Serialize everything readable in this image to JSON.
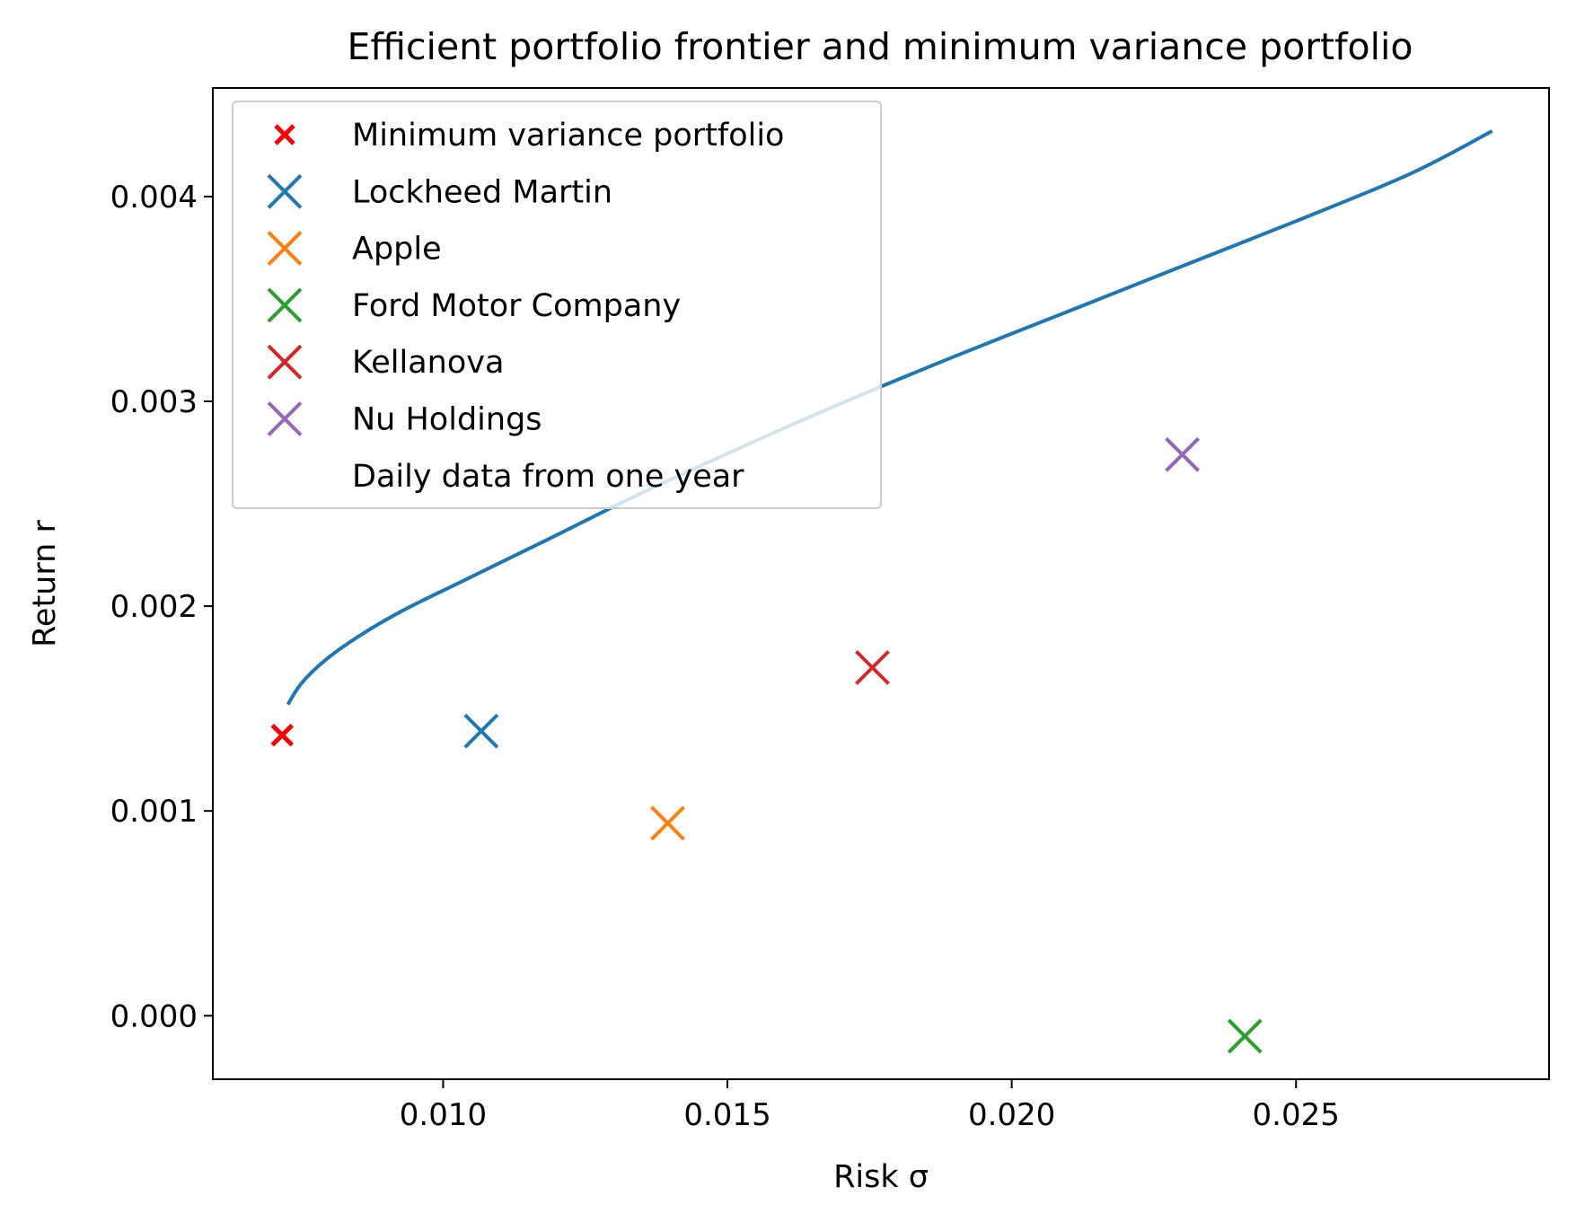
{
  "chart_data": {
    "type": "scatter",
    "title": "Efficient portfolio frontier and minimum variance portfolio",
    "xlabel": "Risk σ",
    "ylabel": "Return r",
    "xlim": [
      0.00595,
      0.02945
    ],
    "ylim": [
      -0.00031,
      0.00453
    ],
    "grid": false,
    "legend_position": "top-left",
    "x_ticks": [
      {
        "value": 0.01,
        "label": "0.010"
      },
      {
        "value": 0.015,
        "label": "0.015"
      },
      {
        "value": 0.02,
        "label": "0.020"
      },
      {
        "value": 0.025,
        "label": "0.025"
      }
    ],
    "y_ticks": [
      {
        "value": 0.0,
        "label": "0.000"
      },
      {
        "value": 0.001,
        "label": "0.001"
      },
      {
        "value": 0.002,
        "label": "0.002"
      },
      {
        "value": 0.003,
        "label": "0.003"
      },
      {
        "value": 0.004,
        "label": "0.004"
      }
    ],
    "frontier": {
      "color": "#1f77b4",
      "points": [
        [
          0.00727,
          0.00152
        ],
        [
          0.0075,
          0.00162
        ],
        [
          0.0079,
          0.00173
        ],
        [
          0.0085,
          0.00185
        ],
        [
          0.0093,
          0.00198
        ],
        [
          0.0104,
          0.00213
        ],
        [
          0.0118,
          0.00232
        ],
        [
          0.0134,
          0.00254
        ],
        [
          0.0152,
          0.00277
        ],
        [
          0.017,
          0.00299
        ],
        [
          0.019,
          0.00322
        ],
        [
          0.021,
          0.00344
        ],
        [
          0.023,
          0.00366
        ],
        [
          0.025,
          0.00388
        ],
        [
          0.027,
          0.00411
        ],
        [
          0.02845,
          0.00432
        ]
      ]
    },
    "series": [
      {
        "name": "Minimum variance portfolio",
        "x": 0.00717,
        "y": 0.00137,
        "color": "#ff0000",
        "marker": "small-x"
      },
      {
        "name": "Lockheed Martin",
        "x": 0.01067,
        "y": 0.00139,
        "color": "#1f77b4",
        "marker": "x"
      },
      {
        "name": "Apple",
        "x": 0.01395,
        "y": 0.00094,
        "color": "#ff7f0e",
        "marker": "x"
      },
      {
        "name": "Ford Motor Company",
        "x": 0.0241,
        "y": -0.0001,
        "color": "#2ca02c",
        "marker": "x"
      },
      {
        "name": "Kellanova",
        "x": 0.01755,
        "y": 0.0017,
        "color": "#d62728",
        "marker": "x"
      },
      {
        "name": "Nu Holdings",
        "x": 0.023,
        "y": 0.00274,
        "color": "#9467bd",
        "marker": "x"
      }
    ],
    "legend_note": "Daily data from one year"
  }
}
